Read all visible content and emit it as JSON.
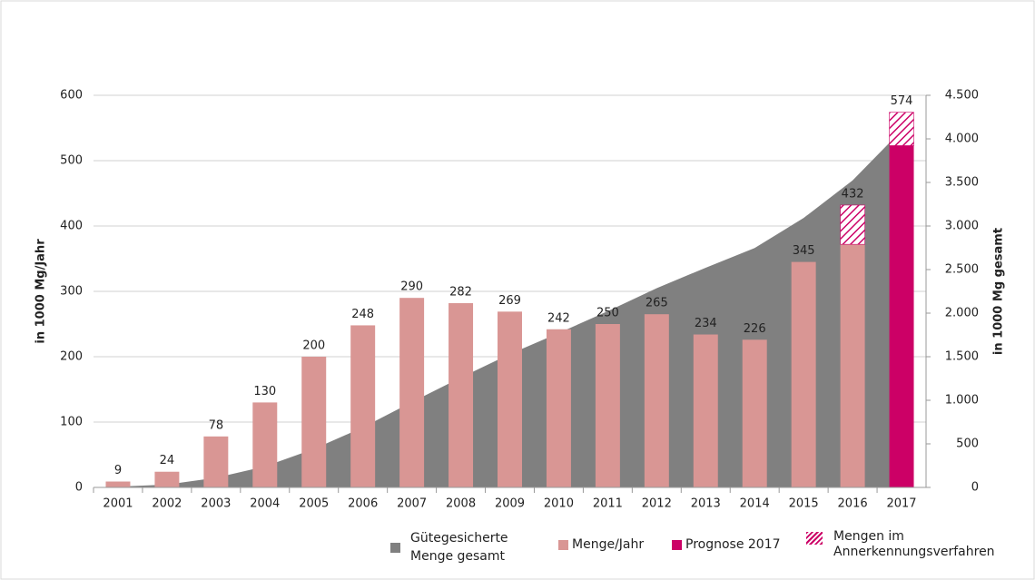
{
  "chart_data": {
    "type": "bar",
    "y_label": "in  1000 Mg/Jahr",
    "y2_label": "in  1000 Mg gesamt",
    "categories": [
      "2001",
      "2002",
      "2003",
      "2004",
      "2005",
      "2006",
      "2007",
      "2008",
      "2009",
      "2010",
      "2011",
      "2012",
      "2013",
      "2014",
      "2015",
      "2016",
      "2017"
    ],
    "series": [
      {
        "name": "Gütegesicherte Menge gesamt",
        "type": "area",
        "axis": "y2",
        "color": "#808080",
        "values": [
          9,
          33,
          111,
          241,
          441,
          689,
          979,
          1261,
          1530,
          1772,
          2022,
          2287,
          2521,
          2747,
          3092,
          3524,
          4098
        ]
      },
      {
        "name": "Menge/Jahr",
        "color": "#d99694",
        "values": [
          9,
          24,
          78,
          130,
          200,
          248,
          290,
          282,
          269,
          242,
          250,
          265,
          234,
          226,
          345,
          372,
          null
        ]
      },
      {
        "name": "Prognose 2017",
        "color": "#cc0066",
        "values": [
          null,
          null,
          null,
          null,
          null,
          null,
          null,
          null,
          null,
          null,
          null,
          null,
          null,
          null,
          null,
          null,
          523
        ]
      },
      {
        "name": "Mengen im Annerkennungsverfahren",
        "color": "#cc0066",
        "pattern": "hatch",
        "values": [
          null,
          null,
          null,
          null,
          null,
          null,
          null,
          null,
          null,
          null,
          null,
          null,
          null,
          null,
          null,
          60,
          51
        ]
      }
    ],
    "bar_total_labels": [
      9,
      24,
      78,
      130,
      200,
      248,
      290,
      282,
      269,
      242,
      250,
      265,
      234,
      226,
      345,
      432,
      574
    ],
    "ylim": [
      0,
      600
    ],
    "yticks": [
      0,
      100,
      200,
      300,
      400,
      500,
      600
    ],
    "y2lim": [
      0,
      4500
    ],
    "y2ticks": [
      0,
      500,
      {
        "value": 1000,
        "label": "1.000"
      },
      {
        "value": 1500,
        "label": "1.500"
      },
      {
        "value": 2000,
        "label": "2.000"
      },
      {
        "value": 2500,
        "label": "2.500"
      },
      {
        "value": 3000,
        "label": "3.000"
      },
      {
        "value": 3500,
        "label": "3.500"
      },
      {
        "value": 4000,
        "label": "4.000"
      },
      {
        "value": 4500,
        "label": "4.500"
      }
    ],
    "grid": true
  }
}
